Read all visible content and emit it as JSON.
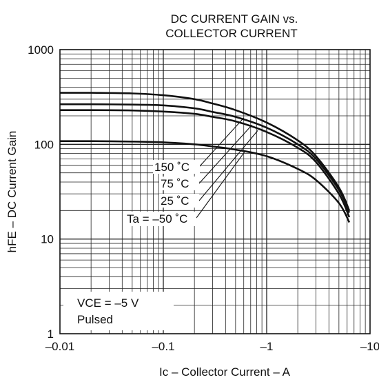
{
  "chart_data": {
    "type": "line",
    "title": "DC CURRENT GAIN  vs.",
    "subtitle": "COLLECTOR CURRENT",
    "xlabel": "Ic – Collector Current – A",
    "ylabel": "hFE – DC Current Gain",
    "x_scale": "log",
    "y_scale": "log",
    "xlim": [
      -0.01,
      -10
    ],
    "ylim": [
      1,
      1000
    ],
    "x_ticks": [
      {
        "value": -0.01,
        "label": "–0.01"
      },
      {
        "value": -0.1,
        "label": "–0.1"
      },
      {
        "value": -1,
        "label": "–1"
      },
      {
        "value": -10,
        "label": "–10"
      }
    ],
    "y_ticks": [
      {
        "value": 1,
        "label": "1"
      },
      {
        "value": 10,
        "label": "10"
      },
      {
        "value": 100,
        "label": "100"
      },
      {
        "value": 1000,
        "label": "1000"
      }
    ],
    "grid": true,
    "series": [
      {
        "name": "150 ˚C",
        "x": [
          -0.01,
          -0.02,
          -0.05,
          -0.1,
          -0.2,
          -0.3,
          -0.5,
          -1,
          -2,
          -3,
          -5,
          -6.3
        ],
        "y": [
          350,
          350,
          345,
          330,
          300,
          270,
          230,
          170,
          110,
          75,
          35,
          20
        ]
      },
      {
        "name": "75 ˚C",
        "x": [
          -0.01,
          -0.02,
          -0.05,
          -0.1,
          -0.2,
          -0.3,
          -0.5,
          -1,
          -2,
          -3,
          -5,
          -6.3
        ],
        "y": [
          265,
          265,
          263,
          258,
          240,
          220,
          195,
          150,
          100,
          70,
          33,
          19
        ]
      },
      {
        "name": "25 ˚C",
        "x": [
          -0.01,
          -0.02,
          -0.05,
          -0.1,
          -0.2,
          -0.3,
          -0.5,
          -1,
          -2,
          -3,
          -5,
          -6.3
        ],
        "y": [
          230,
          230,
          228,
          222,
          210,
          195,
          175,
          135,
          92,
          65,
          30,
          17
        ]
      },
      {
        "name": "Ta = –50 ˚C",
        "x": [
          -0.01,
          -0.02,
          -0.05,
          -0.1,
          -0.2,
          -0.3,
          -0.5,
          -1,
          -2,
          -3,
          -5,
          -6.3
        ],
        "y": [
          108,
          108,
          107,
          105,
          100,
          95,
          88,
          75,
          55,
          42,
          24,
          15
        ]
      }
    ],
    "annotations": [
      "VCE = –5 V",
      "Pulsed"
    ]
  }
}
